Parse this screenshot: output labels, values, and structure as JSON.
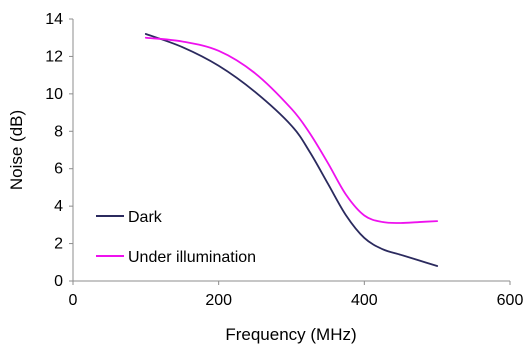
{
  "chart_data": {
    "type": "line",
    "xlabel": "Frequency (MHz)",
    "ylabel": "Noise (dB)",
    "xlim": [
      0,
      600
    ],
    "ylim": [
      0,
      14
    ],
    "xticks": [
      0,
      200,
      400,
      600
    ],
    "yticks": [
      0,
      2,
      4,
      6,
      8,
      10,
      12,
      14
    ],
    "grid": false,
    "legend_position": "bottom-left",
    "series": [
      {
        "name": "Dark",
        "color": "#2b2a5e",
        "x": [
          100,
          150,
          200,
          250,
          300,
          325,
          350,
          375,
          400,
          425,
          450,
          475,
          500
        ],
        "y": [
          13.2,
          12.5,
          11.5,
          10.1,
          8.3,
          6.9,
          5.2,
          3.5,
          2.3,
          1.7,
          1.4,
          1.1,
          0.8
        ]
      },
      {
        "name": "Under illumination",
        "color": "#ee11ee",
        "x": [
          100,
          150,
          200,
          250,
          300,
          325,
          350,
          375,
          400,
          425,
          450,
          475,
          500
        ],
        "y": [
          13.0,
          12.8,
          12.3,
          11.1,
          9.2,
          7.9,
          6.3,
          4.6,
          3.5,
          3.15,
          3.1,
          3.15,
          3.2
        ]
      }
    ]
  }
}
